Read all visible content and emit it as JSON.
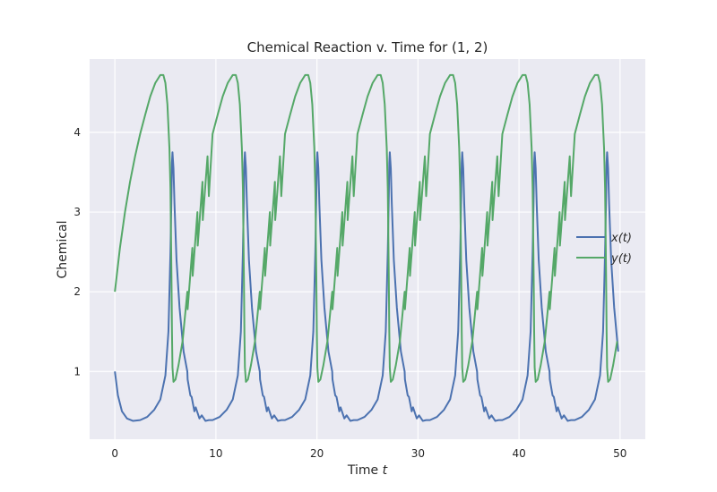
{
  "chart_data": {
    "type": "line",
    "title": "Chemical Reaction v. Time for (1, 2)",
    "xlabel": "Time",
    "xlabel_var": "t",
    "ylabel": "Chemical",
    "xlim": [
      -2.5,
      52.5
    ],
    "ylim": [
      0.15,
      4.92
    ],
    "xticks": [
      0,
      10,
      20,
      30,
      40,
      50
    ],
    "yticks": [
      1,
      2,
      3,
      4
    ],
    "grid": true,
    "legend_position": "right",
    "period": 7.17,
    "series": [
      {
        "name": "x(t)",
        "color": "#4C72B0",
        "x": [
          0,
          0.3,
          0.7,
          1.2,
          1.8,
          2.5,
          3.2,
          3.9,
          4.5,
          5.0,
          5.3,
          5.5,
          5.6,
          5.65,
          5.7,
          5.8,
          5.9,
          6.1,
          6.4,
          6.8,
          7.2,
          7.6,
          8.0,
          8.6,
          9.3
        ],
        "y": [
          1.0,
          0.7,
          0.5,
          0.41,
          0.38,
          0.39,
          0.43,
          0.52,
          0.65,
          0.95,
          1.5,
          2.5,
          3.2,
          3.62,
          3.75,
          3.55,
          3.1,
          2.4,
          1.8,
          1.25,
          0.9,
          0.68,
          0.55,
          0.45,
          0.39
        ]
      },
      {
        "name": "y(t)",
        "color": "#55A868",
        "x": [
          0,
          0.5,
          1.0,
          1.5,
          2.0,
          2.5,
          3.0,
          3.5,
          4.0,
          4.5,
          4.8,
          5.0,
          5.2,
          5.4,
          5.5,
          5.6,
          5.65,
          5.7,
          5.8,
          6.0,
          6.3,
          6.7,
          7.2,
          7.7,
          8.2,
          8.7,
          9.3
        ],
        "y": [
          2.0,
          2.55,
          3.0,
          3.38,
          3.7,
          3.98,
          4.22,
          4.45,
          4.62,
          4.72,
          4.72,
          4.62,
          4.35,
          3.8,
          3.3,
          2.2,
          1.5,
          1.05,
          0.87,
          0.9,
          1.08,
          1.38,
          1.78,
          2.2,
          2.58,
          2.9,
          3.2
        ]
      }
    ]
  }
}
